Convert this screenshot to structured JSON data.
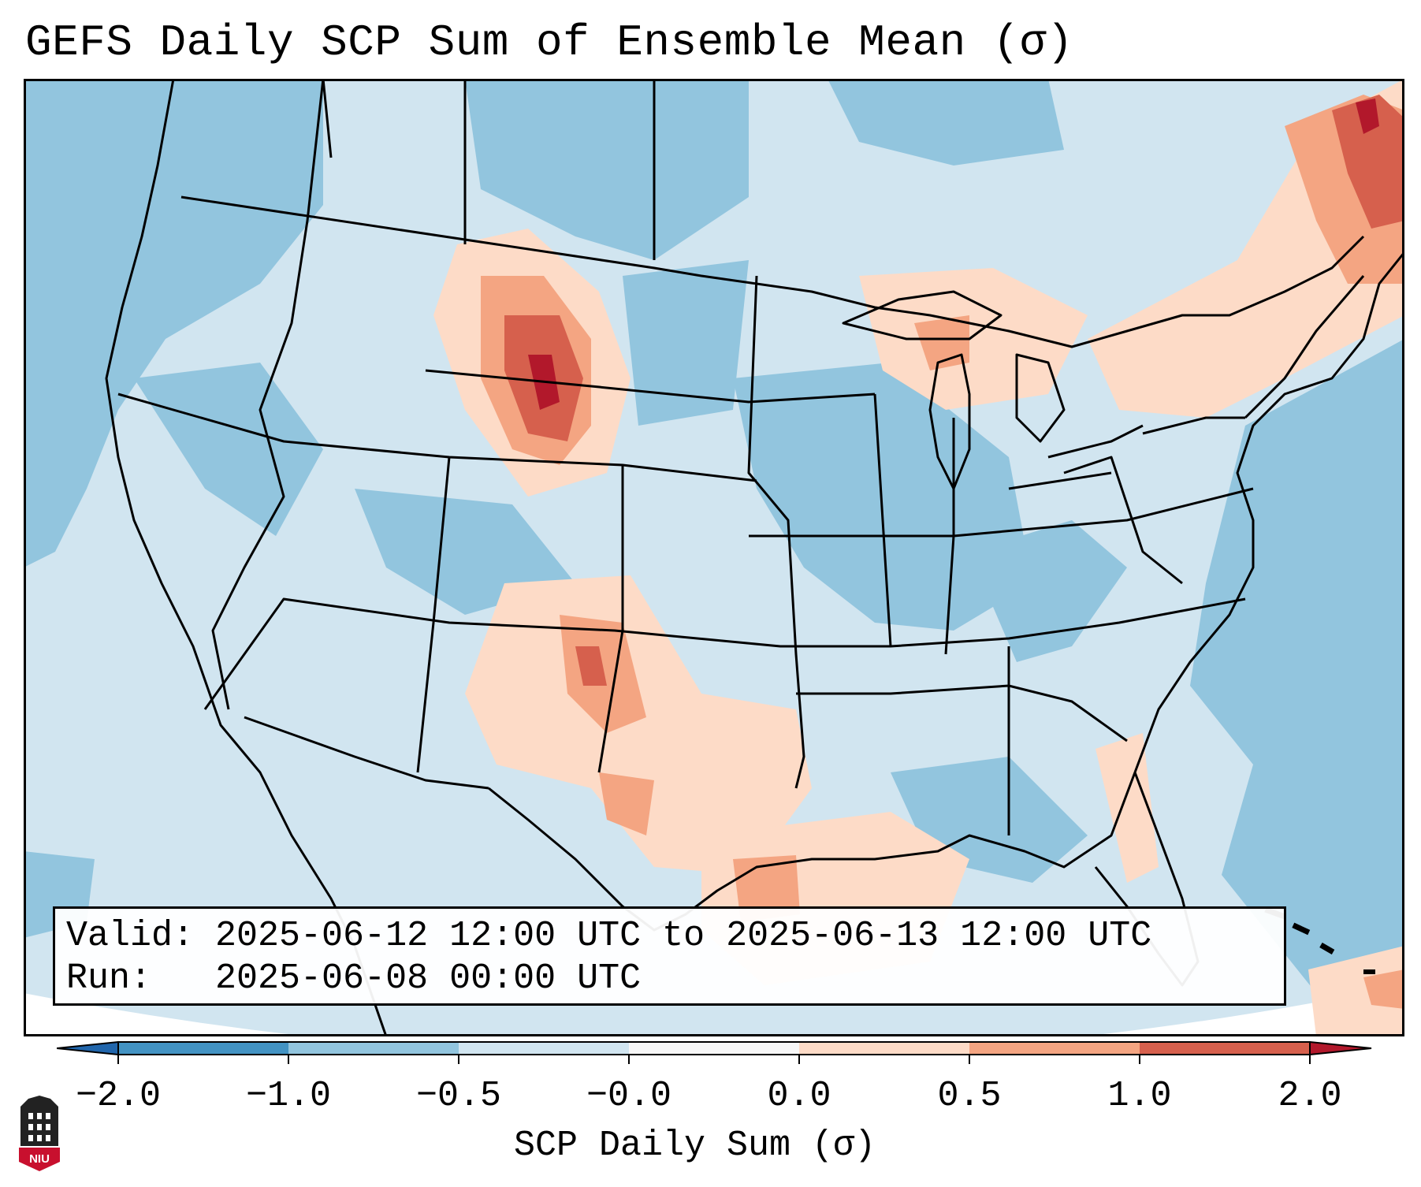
{
  "title": "GEFS Daily SCP Sum of Ensemble Mean (σ)",
  "valid_line": "Valid: 2025-06-12 12:00 UTC to 2025-06-13 12:00 UTC",
  "run_line": "Run:   2025-06-08 00:00 UTC",
  "colorbar": {
    "label": "SCP Daily Sum (σ)",
    "ticks": [
      "−2.0",
      "−1.0",
      "−0.5",
      "−0.0",
      "0.0",
      "0.5",
      "1.0",
      "2.0"
    ],
    "colors": [
      "#4393c3",
      "#92c5de",
      "#d1e5f0",
      "#f7f7f7",
      "#fddbc7",
      "#f4a582",
      "#d6604d"
    ],
    "under_color": "#2166ac",
    "over_color": "#b2182b"
  },
  "colors": {
    "background_field": "#d1e5f0",
    "outside_domain": "#ffffff",
    "map_lines": "#000000"
  },
  "logo": {
    "text": "NIU"
  }
}
